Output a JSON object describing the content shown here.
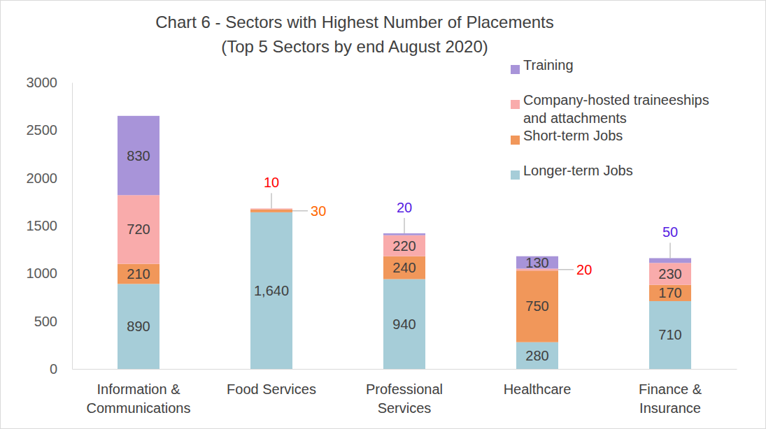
{
  "chart_data": {
    "type": "bar",
    "title": "Chart 6 - Sectors with Highest Number of Placements",
    "subtitle": "(Top 5 Sectors by end August 2020)",
    "categories": [
      "Information & Communications",
      "Food Services",
      "Professional Services",
      "Healthcare",
      "Finance & Insurance"
    ],
    "series": [
      {
        "name": "Longer-term Jobs",
        "color": "#a6cdd8",
        "values": [
          890,
          1640,
          940,
          280,
          710
        ],
        "value_labels": [
          "890",
          "1,640",
          "940",
          "280",
          "710"
        ]
      },
      {
        "name": "Short-term Jobs",
        "color": "#f1975a",
        "values": [
          210,
          30,
          240,
          750,
          170
        ]
      },
      {
        "name": "Company-hosted traineeships and attachments",
        "color": "#f9abab",
        "values": [
          720,
          10,
          220,
          20,
          230
        ]
      },
      {
        "name": "Training",
        "color": "#a894d9",
        "values": [
          830,
          null,
          20,
          130,
          50
        ]
      }
    ],
    "ylim": [
      0,
      3000
    ],
    "yticks": [
      0,
      500,
      1000,
      1500,
      2000,
      2500,
      3000
    ],
    "stacked": true,
    "data_labels": true,
    "legend": "top-right",
    "grid": false
  }
}
